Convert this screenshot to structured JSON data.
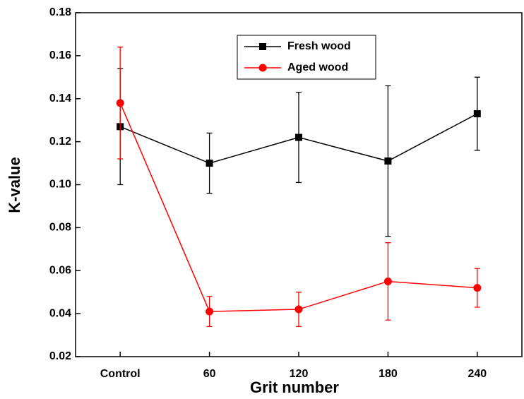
{
  "chart_data": {
    "type": "line",
    "x_label": "Grit number",
    "y_label": "K-value",
    "categories": [
      "Control",
      "60",
      "120",
      "180",
      "240"
    ],
    "series": [
      {
        "name": "Fresh wood",
        "color": "#000000",
        "marker": "square",
        "values": [
          0.127,
          0.11,
          0.122,
          0.111,
          0.133
        ],
        "errors": [
          0.027,
          0.014,
          0.021,
          0.035,
          0.017
        ]
      },
      {
        "name": "Aged wood",
        "color": "#ff0000",
        "marker": "circle",
        "values": [
          0.138,
          0.041,
          0.042,
          0.055,
          0.052
        ],
        "errors": [
          0.026,
          0.007,
          0.008,
          0.018,
          0.009
        ]
      }
    ],
    "ylim": [
      0.02,
      0.18
    ],
    "yticks": [
      0.02,
      0.04,
      0.06,
      0.08,
      {
        "value": 0.1,
        "label": "0.10"
      },
      0.12,
      0.14,
      0.16,
      0.18
    ]
  }
}
